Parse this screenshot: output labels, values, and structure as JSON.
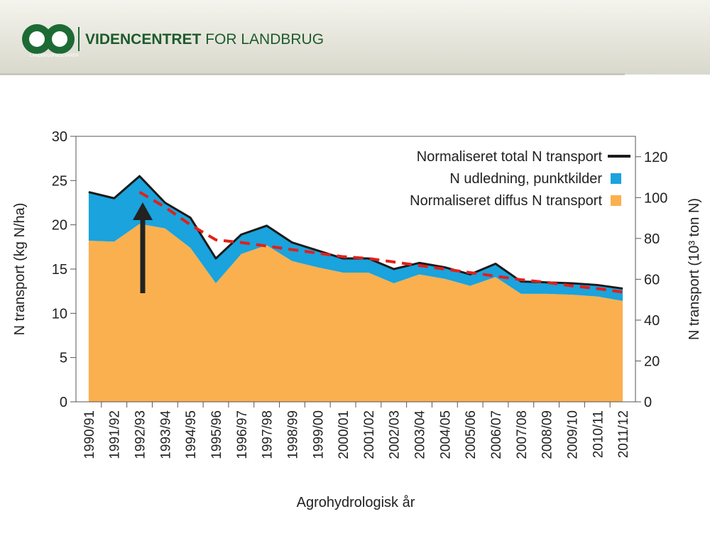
{
  "header": {
    "brand_bold": "VIDENCENTRET",
    "brand_rest": "FOR LANDBRUG",
    "logo_top": "LANDBRUG",
    "logo_right": "FØDEVARER"
  },
  "chart_data": {
    "type": "stacked_area",
    "xlabel": "Agrohydrologisk år",
    "ylabel": "N transport (kg N/ha)",
    "y2label": "N transport (10³ ton N)",
    "categories": [
      "1990/91",
      "1991/92",
      "1992/93",
      "1993/94",
      "1994/95",
      "1995/96",
      "1996/97",
      "1997/98",
      "1998/99",
      "1999/00",
      "2000/01",
      "2001/02",
      "2002/03",
      "2003/04",
      "2004/05",
      "2005/06",
      "2006/07",
      "2007/08",
      "2008/09",
      "2009/10",
      "2010/11",
      "2011/12"
    ],
    "series": [
      {
        "name": "Normaliseret diffus N transport",
        "color": "#fbb04f",
        "kind": "area",
        "values": [
          18.2,
          18.1,
          20.1,
          19.6,
          17.4,
          13.4,
          16.7,
          17.7,
          15.9,
          15.2,
          14.6,
          14.6,
          13.4,
          14.4,
          13.9,
          13.1,
          14.1,
          12.2,
          12.2,
          12.1,
          11.9,
          11.4
        ]
      },
      {
        "name": "N udledning, punktkilder",
        "color": "#1aa3dc",
        "kind": "area",
        "values": [
          5.5,
          4.9,
          5.4,
          2.9,
          3.4,
          2.8,
          2.2,
          2.2,
          2.1,
          1.9,
          1.6,
          1.6,
          1.6,
          1.3,
          1.3,
          1.3,
          1.5,
          1.4,
          1.3,
          1.3,
          1.3,
          1.4
        ]
      },
      {
        "name": "Normaliseret total N transport",
        "color": "#1a1a1a",
        "kind": "line",
        "values": [
          23.7,
          23.0,
          25.5,
          22.5,
          20.8,
          16.2,
          18.9,
          19.9,
          18.0,
          17.1,
          16.2,
          16.2,
          15.0,
          15.7,
          15.2,
          14.4,
          15.6,
          13.6,
          13.5,
          13.4,
          13.2,
          12.8
        ]
      },
      {
        "color": "#e0201b",
        "kind": "dashed",
        "values": [
          null,
          null,
          23.7,
          22.0,
          20.0,
          18.3,
          18.0,
          17.6,
          17.2,
          16.8,
          16.4,
          16.2,
          15.8,
          15.4,
          15.0,
          14.6,
          14.2,
          13.8,
          13.5,
          13.1,
          12.8,
          12.4
        ]
      }
    ],
    "ylim": [
      0,
      30
    ],
    "yticks": [
      0,
      5,
      10,
      15,
      20,
      25,
      30
    ],
    "y2lim": [
      0,
      130
    ],
    "y2ticks": [
      0,
      20,
      40,
      60,
      80,
      100,
      120
    ],
    "legend": "upper right"
  }
}
